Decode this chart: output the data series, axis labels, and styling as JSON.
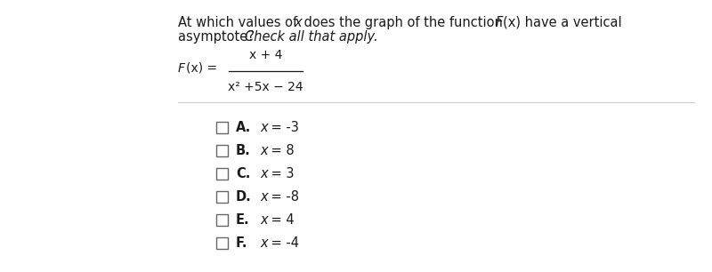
{
  "title_line1": "At which values of x does the graph of the function ",
  "title_line1_italic": "F",
  "title_line1_rest": "(x) have a vertical",
  "title_line2_normal": "asymptote? ",
  "title_line2_italic": "Check all that apply.",
  "formula_label_italic": "F",
  "formula_label_rest": "(x) =",
  "formula_numerator": "x + 4",
  "formula_denominator": "x² +5x − 24",
  "options": [
    {
      "label": "A.",
      "value": "-3"
    },
    {
      "label": "B.",
      "value": "8"
    },
    {
      "label": "C.",
      "value": "3"
    },
    {
      "label": "D.",
      "value": "-8"
    },
    {
      "label": "E.",
      "value": "4"
    },
    {
      "label": "F.",
      "value": "-4"
    }
  ],
  "bg_color": "#ffffff",
  "text_color": "#1a1a1a",
  "checkbox_color": "#666666",
  "line_color": "#cccccc",
  "title_fontsize": 10.5,
  "option_fontsize": 10.5,
  "formula_fontsize": 10.0
}
